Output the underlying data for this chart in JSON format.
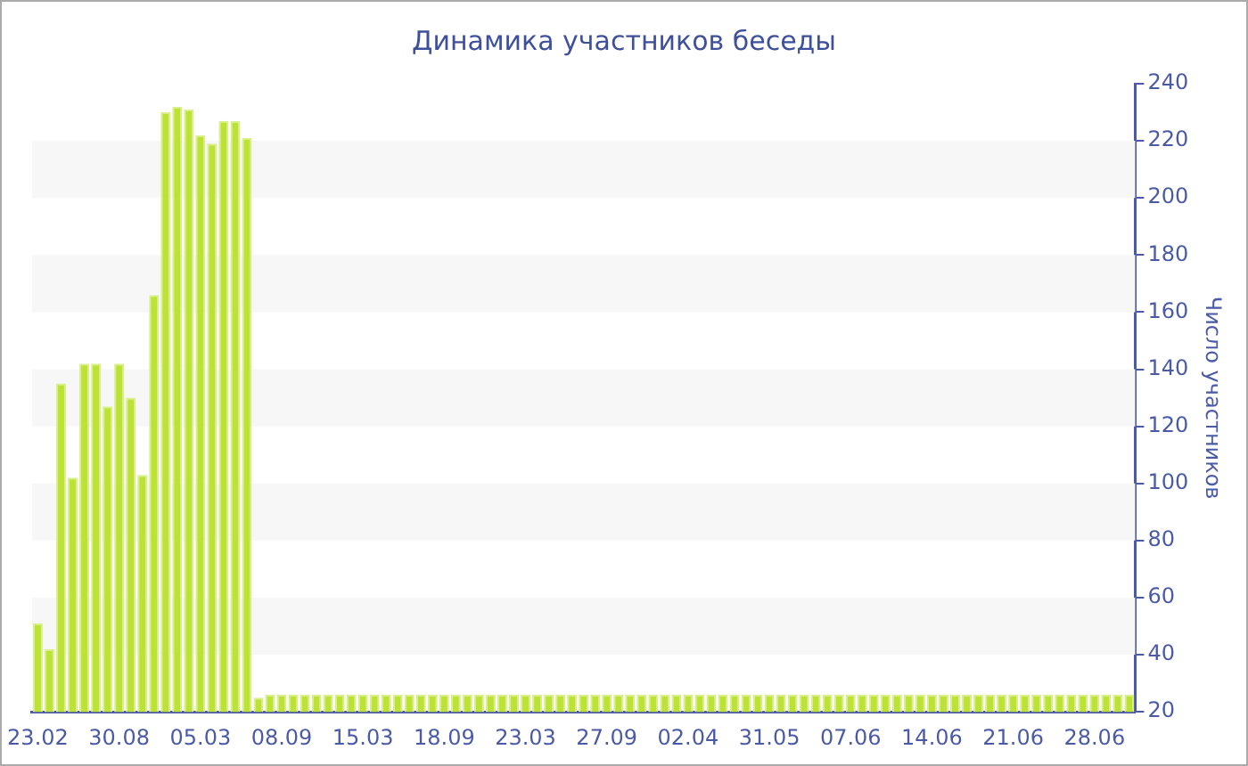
{
  "chart_data": {
    "type": "bar",
    "title": "Динамика участников беседы",
    "ylabel": "Число участников",
    "categories": [
      "23.02",
      null,
      null,
      null,
      null,
      null,
      null,
      "30.08",
      null,
      null,
      null,
      null,
      null,
      null,
      "05.03",
      null,
      null,
      null,
      null,
      null,
      null,
      "08.09",
      null,
      null,
      null,
      null,
      null,
      null,
      "15.03",
      null,
      null,
      null,
      null,
      null,
      null,
      "18.09",
      null,
      null,
      null,
      null,
      null,
      null,
      "23.03",
      null,
      null,
      null,
      null,
      null,
      null,
      "27.09",
      null,
      null,
      null,
      null,
      null,
      null,
      "02.04",
      null,
      null,
      null,
      null,
      null,
      null,
      "31.05",
      null,
      null,
      null,
      null,
      null,
      null,
      "07.06",
      null,
      null,
      null,
      null,
      null,
      null,
      "14.06",
      null,
      null,
      null,
      null,
      null,
      null,
      "21.06",
      null,
      null,
      null,
      null,
      null,
      null,
      "28.06",
      null,
      null,
      null
    ],
    "values": [
      51,
      42,
      135,
      102,
      142,
      142,
      127,
      142,
      130,
      103,
      166,
      230,
      232,
      231,
      222,
      219,
      227,
      227,
      221,
      25,
      26,
      26,
      26,
      26,
      26,
      26,
      26,
      26,
      26,
      26,
      26,
      26,
      26,
      26,
      26,
      26,
      26,
      26,
      26,
      26,
      26,
      26,
      26,
      26,
      26,
      26,
      26,
      26,
      26,
      26,
      26,
      26,
      26,
      26,
      26,
      26,
      26,
      26,
      26,
      26,
      26,
      26,
      26,
      26,
      26,
      26,
      26,
      26,
      26,
      26,
      26,
      26,
      26,
      26,
      26,
      26,
      26,
      26,
      26,
      26,
      26,
      26,
      26,
      26,
      26,
      26,
      26,
      26,
      26,
      26,
      26,
      26,
      26,
      26,
      26
    ],
    "color": "#bde236",
    "ylim": [
      20,
      240
    ],
    "yticks": [
      20,
      40,
      60,
      80,
      100,
      120,
      140,
      160,
      180,
      200,
      220,
      240
    ],
    "legend": false,
    "bands": [
      {
        "axis": "y",
        "from": 40,
        "to": 60,
        "color": "#f7f7f7"
      },
      {
        "axis": "y",
        "from": 80,
        "to": 100,
        "color": "#f7f7f7"
      },
      {
        "axis": "y",
        "from": 120,
        "to": 140,
        "color": "#f7f7f7"
      },
      {
        "axis": "y",
        "from": 160,
        "to": 180,
        "color": "#f7f7f7"
      },
      {
        "axis": "y",
        "from": 200,
        "to": 220,
        "color": "#f7f7f7"
      }
    ]
  }
}
